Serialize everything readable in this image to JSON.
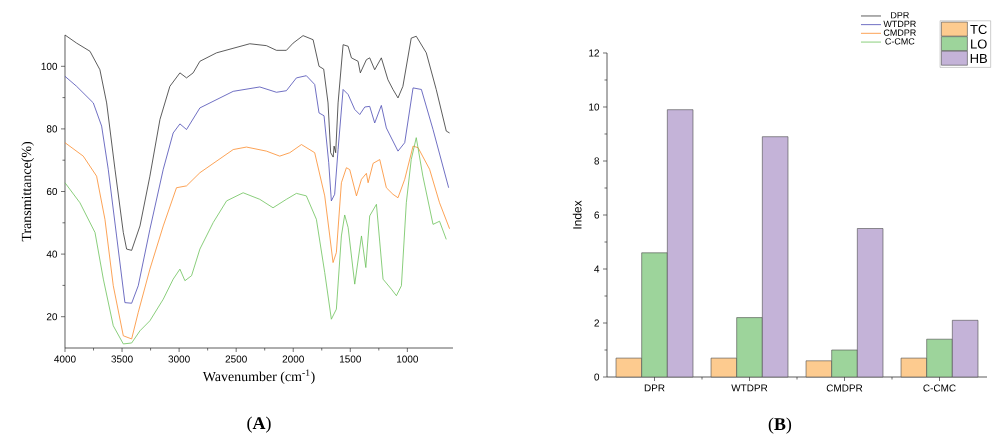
{
  "chart_data": [
    {
      "type": "line",
      "xlabel": "Wavenumber (cm$^{-1}$)",
      "ylabel": "Transmittance(%)",
      "xlim": [
        4000,
        600
      ],
      "xticks": [
        4000,
        3500,
        3000,
        2500,
        2000,
        1500,
        1000
      ],
      "ylim": [
        10,
        110
      ],
      "yticks": [
        20,
        40,
        60,
        80,
        100
      ],
      "legend": "top right",
      "annotations": [
        "(**A**)"
      ],
      "series": [
        {
          "name": "DPR",
          "color": "#333333",
          "x": [
            4000,
            3898,
            3781,
            3694,
            3635,
            3562,
            3489,
            3460,
            3416,
            3343,
            3256,
            3168,
            3081,
            2993,
            2935,
            2877,
            2818,
            2672,
            2381,
            2235,
            2147,
            2060,
            2001,
            1914,
            1826,
            1774,
            1733,
            1695,
            1672,
            1650,
            1642,
            1628,
            1607,
            1563,
            1519,
            1490,
            1432,
            1412,
            1359,
            1330,
            1286,
            1228,
            1170,
            1126,
            1082,
            1039,
            966,
            922,
            834,
            747,
            659,
            630
          ],
          "values": [
            110,
            107.4,
            104.8,
            98.9,
            88.3,
            67.1,
            46.9,
            41.6,
            41.2,
            49,
            64.9,
            83,
            93.6,
            97.9,
            96.3,
            97.9,
            101.6,
            104.3,
            107.2,
            106.6,
            105.1,
            105.1,
            107.4,
            109.8,
            108.5,
            100,
            99.1,
            88.3,
            72.4,
            71,
            74.5,
            72.4,
            88.3,
            106.9,
            106.4,
            102.7,
            101.6,
            97.9,
            102.1,
            102.7,
            98.9,
            102.7,
            95.7,
            92.6,
            89.9,
            93.6,
            109,
            109.6,
            104.3,
            92.6,
            79.3,
            78.7
          ]
        },
        {
          "name": "WTDPR",
          "color": "#4b4bb4",
          "x": [
            4000,
            3898,
            3752,
            3679,
            3621,
            3548,
            3475,
            3416,
            3358,
            3256,
            3139,
            3052,
            2993,
            2935,
            2818,
            2526,
            2293,
            2147,
            2060,
            1972,
            1885,
            1812,
            1774,
            1730,
            1689,
            1666,
            1637,
            1607,
            1563,
            1519,
            1461,
            1417,
            1373,
            1330,
            1286,
            1228,
            1184,
            1082,
            1023,
            950,
            877,
            775,
            638
          ],
          "values": [
            96.8,
            93.6,
            88.3,
            80.9,
            67.1,
            45.8,
            24.5,
            24.3,
            29.9,
            47.9,
            67.1,
            78.7,
            81.6,
            79.8,
            86.7,
            92,
            93.4,
            91.7,
            92.2,
            96.3,
            97,
            94.2,
            85.1,
            84.2,
            69.2,
            57,
            59.1,
            73.4,
            92.6,
            91,
            86.2,
            84.6,
            87,
            87.2,
            81.9,
            87.5,
            80.3,
            72.9,
            75.6,
            93.1,
            92.6,
            79.8,
            61.2
          ]
        },
        {
          "name": "CMDPR",
          "color": "#fb8c2c",
          "x": [
            4000,
            3840,
            3723,
            3650,
            3577,
            3489,
            3416,
            3358,
            3256,
            3139,
            3023,
            2935,
            2818,
            2526,
            2410,
            2235,
            2118,
            2030,
            1928,
            1812,
            1724,
            1680,
            1651,
            1622,
            1578,
            1534,
            1505,
            1446,
            1402,
            1359,
            1344,
            1300,
            1242,
            1184,
            1126,
            1082,
            1023,
            950,
            906,
            805,
            718,
            630
          ],
          "values": [
            75.6,
            71.3,
            64.9,
            51.1,
            29.9,
            13.9,
            12.9,
            21.4,
            35.2,
            49,
            61.2,
            61.8,
            66,
            73.4,
            74.2,
            72.9,
            71.3,
            72.4,
            75,
            72.4,
            58.6,
            45.8,
            37.3,
            40.5,
            62.8,
            67.6,
            67,
            58.6,
            63.9,
            65.8,
            62.8,
            69,
            70.2,
            61.2,
            59.1,
            58,
            63.9,
            74.5,
            74,
            67.1,
            56.4,
            48.1
          ]
        },
        {
          "name": "C-CMC",
          "color": "#6cc25a",
          "x": [
            4000,
            3869,
            3737,
            3664,
            3577,
            3489,
            3416,
            3343,
            3256,
            3139,
            3052,
            2993,
            2949,
            2891,
            2818,
            2701,
            2584,
            2439,
            2293,
            2177,
            2060,
            1972,
            1885,
            1797,
            1724,
            1666,
            1622,
            1578,
            1549,
            1519,
            1461,
            1402,
            1364,
            1330,
            1271,
            1213,
            1140,
            1096,
            1052,
            1009,
            966,
            922,
            864,
            775,
            718,
            659
          ],
          "values": [
            62.8,
            56.4,
            46.9,
            32,
            17.1,
            11.3,
            11.6,
            15.5,
            18.7,
            25.6,
            32,
            35.2,
            31.5,
            33.1,
            41.6,
            50.1,
            57,
            59.6,
            57.5,
            54.8,
            57.5,
            59.4,
            58.6,
            51.1,
            34.1,
            19.2,
            22.4,
            45.8,
            52.5,
            48.5,
            30.4,
            45.8,
            35.7,
            52.2,
            55.9,
            32,
            28.8,
            26.7,
            29.9,
            56.4,
            70.2,
            77.2,
            64.9,
            49.5,
            50.5,
            44.7
          ]
        }
      ]
    },
    {
      "type": "bar",
      "ylabel": "Index",
      "categories": [
        "DPR",
        "WTDPR",
        "CMDPR",
        "C-CMC"
      ],
      "ylim": [
        0,
        12
      ],
      "yticks": [
        0,
        2,
        4,
        6,
        8,
        10,
        12
      ],
      "legend": "top right",
      "annotations": [
        "(**B**)"
      ],
      "series": [
        {
          "name": "TC",
          "color": "#fdcb8f",
          "values": [
            0.7,
            0.7,
            0.6,
            0.7
          ]
        },
        {
          "name": "LO",
          "color": "#9dd49b",
          "values": [
            4.6,
            2.2,
            1.0,
            1.4
          ]
        },
        {
          "name": "HB",
          "color": "#c4b3d8",
          "values": [
            9.9,
            8.9,
            5.5,
            2.1
          ]
        }
      ]
    }
  ]
}
